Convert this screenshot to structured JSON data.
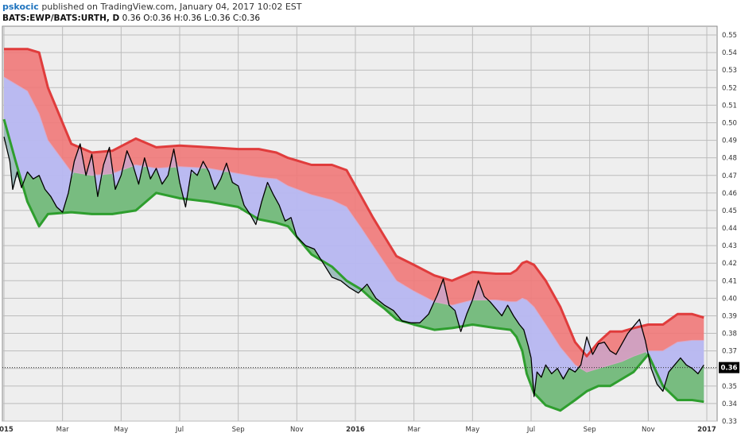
{
  "header": {
    "username": "pskocic",
    "published_text": "published on TradingView.com, January 04, 2017 10:02 EST",
    "symbol": "BATS:EWP/BATS:URTH, D",
    "ohlc": "0.36 O:0.36 H:0.36 L:0.36 C:0.36"
  },
  "colors": {
    "upper_band": "#f07878",
    "mid_band": "#b8b8f0",
    "lower_band": "#6cbc6c",
    "upper_line": "#e03c3c",
    "lower_line": "#2e9e2e",
    "price_line": "#000000",
    "background": "#eeeeee",
    "grid": "#bcbcbc"
  },
  "chart_data": {
    "type": "line",
    "title": "",
    "ylim": [
      0.33,
      0.555
    ],
    "y_ticks": [
      0.33,
      0.34,
      0.35,
      0.36,
      0.37,
      0.38,
      0.39,
      0.4,
      0.41,
      0.42,
      0.43,
      0.44,
      0.45,
      0.46,
      0.47,
      0.48,
      0.49,
      0.5,
      0.51,
      0.52,
      0.53,
      0.54,
      0.55
    ],
    "y_tick_labels": [
      "0.33",
      "0.34",
      "0.35",
      "0.36",
      "0.37",
      "0.38",
      "0.39",
      "0.40",
      "0.41",
      "0.42",
      "0.43",
      "0.44",
      "0.45",
      "0.46",
      "0.47",
      "0.48",
      "0.49",
      "0.50",
      "0.51",
      "0.52",
      "0.53",
      "0.54",
      "0.55"
    ],
    "x_ticks": [
      {
        "t": 0,
        "label": "2015",
        "major": true
      },
      {
        "t": 2,
        "label": "Mar",
        "major": false
      },
      {
        "t": 4,
        "label": "May",
        "major": false
      },
      {
        "t": 6,
        "label": "Jul",
        "major": false
      },
      {
        "t": 8,
        "label": "Sep",
        "major": false
      },
      {
        "t": 10,
        "label": "Nov",
        "major": false
      },
      {
        "t": 12,
        "label": "2016",
        "major": true
      },
      {
        "t": 14,
        "label": "Mar",
        "major": false
      },
      {
        "t": 16,
        "label": "May",
        "major": false
      },
      {
        "t": 18,
        "label": "Jul",
        "major": false
      },
      {
        "t": 20,
        "label": "Sep",
        "major": false
      },
      {
        "t": 22,
        "label": "Nov",
        "major": false
      },
      {
        "t": 24,
        "label": "2017",
        "major": true
      }
    ],
    "last_value_label": "0.36",
    "last_value": 0.3605,
    "series": [
      {
        "role": "upper",
        "x": [
          0,
          0.8,
          1.2,
          1.5,
          2.3,
          3.0,
          3.7,
          4.5,
          5.2,
          6.0,
          7.0,
          8.0,
          8.7,
          9.3,
          9.7,
          10.5,
          11.2,
          11.7,
          12.2,
          12.6,
          13.0,
          13.4,
          14.0,
          14.7,
          15.3,
          16.0,
          16.8,
          17.3,
          17.5,
          17.7,
          17.85,
          18.1,
          18.5,
          19.0,
          19.5,
          19.9,
          20.3,
          20.7,
          21.1,
          21.5,
          22.0,
          22.5,
          23.0,
          23.5,
          23.9
        ],
        "values": [
          0.542,
          0.542,
          0.54,
          0.52,
          0.488,
          0.483,
          0.484,
          0.491,
          0.486,
          0.487,
          0.486,
          0.485,
          0.485,
          0.483,
          0.48,
          0.476,
          0.476,
          0.473,
          0.458,
          0.446,
          0.435,
          0.424,
          0.419,
          0.413,
          0.41,
          0.415,
          0.414,
          0.414,
          0.416,
          0.42,
          0.421,
          0.419,
          0.41,
          0.395,
          0.375,
          0.367,
          0.375,
          0.381,
          0.381,
          0.383,
          0.385,
          0.385,
          0.391,
          0.391,
          0.389
        ]
      },
      {
        "role": "middle",
        "x": [
          0,
          0.8,
          1.2,
          1.5,
          2.3,
          3.0,
          3.7,
          4.5,
          5.2,
          6.0,
          7.0,
          8.0,
          8.7,
          9.3,
          9.7,
          10.5,
          11.2,
          11.7,
          12.2,
          12.6,
          13.0,
          13.4,
          14.0,
          14.7,
          15.3,
          16.0,
          16.8,
          17.3,
          17.5,
          17.7,
          17.85,
          18.1,
          18.5,
          19.0,
          19.5,
          19.9,
          20.3,
          20.7,
          21.1,
          21.5,
          22.0,
          22.5,
          23.0,
          23.5,
          23.9
        ],
        "values": [
          0.526,
          0.518,
          0.505,
          0.49,
          0.472,
          0.47,
          0.471,
          0.476,
          0.474,
          0.475,
          0.474,
          0.471,
          0.469,
          0.468,
          0.464,
          0.459,
          0.456,
          0.452,
          0.44,
          0.43,
          0.42,
          0.41,
          0.404,
          0.398,
          0.396,
          0.399,
          0.399,
          0.398,
          0.398,
          0.4,
          0.399,
          0.395,
          0.385,
          0.372,
          0.362,
          0.358,
          0.36,
          0.362,
          0.364,
          0.367,
          0.37,
          0.37,
          0.375,
          0.376,
          0.376
        ]
      },
      {
        "role": "lower",
        "x": [
          0,
          0.4,
          0.8,
          1.2,
          1.5,
          2.3,
          3.0,
          3.7,
          4.5,
          5.2,
          6.0,
          7.0,
          8.0,
          8.7,
          9.3,
          9.7,
          10.5,
          11.2,
          11.7,
          12.2,
          12.6,
          13.0,
          13.4,
          14.0,
          14.7,
          15.3,
          16.0,
          16.8,
          17.3,
          17.5,
          17.7,
          17.85,
          18.1,
          18.5,
          19.0,
          19.5,
          19.9,
          20.3,
          20.7,
          21.1,
          21.5,
          22.0,
          22.5,
          23.0,
          23.5,
          23.9
        ],
        "values": [
          0.502,
          0.478,
          0.455,
          0.441,
          0.448,
          0.449,
          0.448,
          0.448,
          0.45,
          0.46,
          0.457,
          0.455,
          0.452,
          0.445,
          0.443,
          0.441,
          0.425,
          0.418,
          0.41,
          0.405,
          0.399,
          0.394,
          0.388,
          0.385,
          0.382,
          0.383,
          0.385,
          0.383,
          0.382,
          0.378,
          0.37,
          0.357,
          0.346,
          0.339,
          0.336,
          0.342,
          0.347,
          0.35,
          0.35,
          0.354,
          0.358,
          0.368,
          0.35,
          0.342,
          0.342,
          0.341
        ]
      },
      {
        "role": "price",
        "x": [
          0,
          0.1,
          0.2,
          0.3,
          0.45,
          0.6,
          0.8,
          1.0,
          1.2,
          1.4,
          1.6,
          1.8,
          2.0,
          2.2,
          2.4,
          2.6,
          2.8,
          3.0,
          3.2,
          3.4,
          3.6,
          3.8,
          4.0,
          4.2,
          4.4,
          4.6,
          4.8,
          5.0,
          5.2,
          5.4,
          5.6,
          5.8,
          6.0,
          6.2,
          6.4,
          6.6,
          6.8,
          7.0,
          7.2,
          7.4,
          7.6,
          7.8,
          8.0,
          8.2,
          8.4,
          8.6,
          8.8,
          9.0,
          9.2,
          9.4,
          9.6,
          9.8,
          10.0,
          10.3,
          10.6,
          10.9,
          11.2,
          11.5,
          11.8,
          12.1,
          12.4,
          12.7,
          13.0,
          13.3,
          13.6,
          13.9,
          14.2,
          14.5,
          14.8,
          15.0,
          15.2,
          15.4,
          15.6,
          15.8,
          16.0,
          16.2,
          16.4,
          16.6,
          16.8,
          17.0,
          17.2,
          17.4,
          17.6,
          17.75,
          17.9,
          18.0,
          18.1,
          18.2,
          18.35,
          18.5,
          18.7,
          18.9,
          19.1,
          19.3,
          19.5,
          19.7,
          19.9,
          20.1,
          20.3,
          20.5,
          20.7,
          20.9,
          21.1,
          21.3,
          21.5,
          21.7,
          21.9,
          22.1,
          22.3,
          22.5,
          22.7,
          22.9,
          23.1,
          23.3,
          23.5,
          23.7,
          23.9
        ],
        "values": [
          0.492,
          0.485,
          0.478,
          0.462,
          0.472,
          0.463,
          0.472,
          0.468,
          0.47,
          0.462,
          0.458,
          0.452,
          0.449,
          0.46,
          0.478,
          0.488,
          0.47,
          0.482,
          0.458,
          0.476,
          0.486,
          0.462,
          0.47,
          0.484,
          0.476,
          0.465,
          0.48,
          0.468,
          0.474,
          0.465,
          0.47,
          0.485,
          0.466,
          0.452,
          0.473,
          0.47,
          0.478,
          0.472,
          0.462,
          0.468,
          0.477,
          0.466,
          0.464,
          0.453,
          0.448,
          0.442,
          0.455,
          0.466,
          0.459,
          0.453,
          0.444,
          0.446,
          0.435,
          0.43,
          0.428,
          0.42,
          0.412,
          0.41,
          0.406,
          0.403,
          0.408,
          0.4,
          0.396,
          0.393,
          0.387,
          0.386,
          0.386,
          0.391,
          0.402,
          0.411,
          0.396,
          0.393,
          0.381,
          0.391,
          0.399,
          0.41,
          0.401,
          0.398,
          0.394,
          0.39,
          0.396,
          0.39,
          0.385,
          0.382,
          0.373,
          0.366,
          0.344,
          0.358,
          0.355,
          0.362,
          0.357,
          0.36,
          0.354,
          0.36,
          0.358,
          0.362,
          0.378,
          0.368,
          0.374,
          0.375,
          0.37,
          0.368,
          0.374,
          0.38,
          0.384,
          0.388,
          0.376,
          0.36,
          0.351,
          0.347,
          0.358,
          0.362,
          0.366,
          0.362,
          0.36,
          0.357,
          0.362
        ]
      }
    ]
  }
}
